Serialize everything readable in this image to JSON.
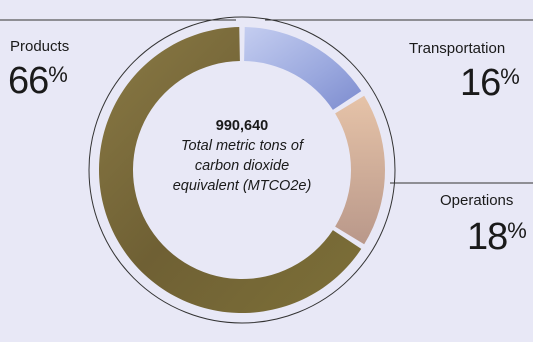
{
  "chart_data": {
    "type": "pie",
    "categories": [
      "Products",
      "Transportation",
      "Operations"
    ],
    "values": [
      66,
      16,
      18
    ],
    "value_suffix": "%",
    "center_total": "990,640",
    "center_caption": "Total metric tons of carbon dioxide equivalent (MTCO2e)",
    "title": "",
    "colors": {
      "Products": "#7a6a3a",
      "Transportation": "#a8b4e2",
      "Operations": "#cdae9a"
    }
  }
}
